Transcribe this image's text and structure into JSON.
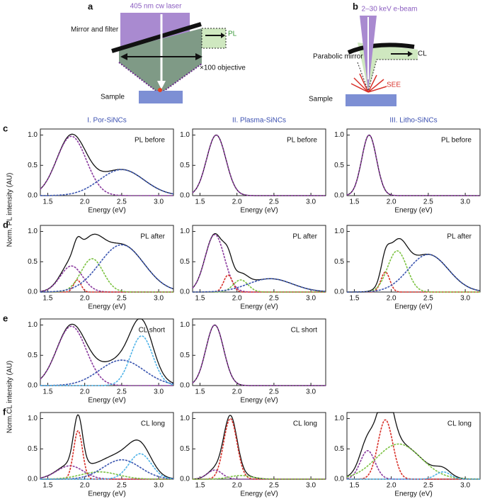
{
  "figure": {
    "panel_a": {
      "letter": "a",
      "laser": "405 nm cw laser",
      "mirror": "Mirror and filter",
      "signal": "PL",
      "objective": "×100 objective",
      "sample": "Sample"
    },
    "panel_b": {
      "letter": "b",
      "beam": "2–30 keV e-beam",
      "mirror": "Parabolic mirror",
      "signal": "CL",
      "electrons": "SEE",
      "sample": "Sample"
    },
    "columns": [
      "I. Por-SiNCs",
      "II. Plasma-SiNCs",
      "III. Litho-SiNCs"
    ],
    "rows": [
      "c",
      "d",
      "e",
      "f"
    ],
    "y_labels": [
      "Norm. PL intensity (AU)",
      "Norm.CL intensity (AU)"
    ]
  },
  "chart_data": [
    {
      "type": "line",
      "title": "PL before",
      "xlabel": "Energy (eV)",
      "xlim": [
        1.4,
        3.2
      ],
      "ylim": [
        0,
        1.1
      ],
      "xticks": [
        {
          "value": 1.5,
          "label": "1.5"
        },
        {
          "value": 2,
          "label": "2.0"
        },
        {
          "value": 2.5,
          "label": "2.5"
        },
        {
          "value": 3,
          "label": "3.0"
        }
      ],
      "yticks": [
        {
          "value": 0,
          "label": "0.0"
        },
        0.5,
        {
          "value": 1,
          "label": "1.0"
        }
      ],
      "components": [
        {
          "color": "#8a3a9e",
          "center": 1.82,
          "amplitude": 0.98,
          "width": 0.2
        },
        {
          "color": "#3a55b0",
          "center": 2.5,
          "amplitude": 0.43,
          "width": 0.3
        }
      ]
    },
    {
      "type": "line",
      "title": "PL before",
      "xlabel": "Energy (eV)",
      "xlim": [
        1.4,
        3.2
      ],
      "ylim": [
        0,
        1.1
      ],
      "xticks": [
        {
          "value": 1.5,
          "label": "1.5"
        },
        {
          "value": 2,
          "label": "2.0"
        },
        {
          "value": 2.5,
          "label": "2.5"
        },
        {
          "value": 3,
          "label": "3.0"
        }
      ],
      "yticks": [
        {
          "value": 0,
          "label": "0.0"
        },
        0.5,
        {
          "value": 1,
          "label": "1.0"
        }
      ],
      "components": [
        {
          "color": "#8a3a9e",
          "center": 1.72,
          "amplitude": 1.0,
          "width": 0.13
        }
      ]
    },
    {
      "type": "line",
      "title": "PL before",
      "xlabel": "Energy (eV)",
      "xlim": [
        1.4,
        3.2
      ],
      "ylim": [
        0,
        1.1
      ],
      "xticks": [
        {
          "value": 1.5,
          "label": "1.5"
        },
        {
          "value": 2,
          "label": "2.0"
        },
        {
          "value": 2.5,
          "label": "2.5"
        },
        {
          "value": 3,
          "label": "3.0"
        }
      ],
      "yticks": [
        {
          "value": 0,
          "label": "0.0"
        },
        0.5,
        {
          "value": 1,
          "label": "1.0"
        }
      ],
      "components": [
        {
          "color": "#8a3a9e",
          "center": 1.7,
          "amplitude": 1.0,
          "width": 0.1
        }
      ]
    },
    {
      "type": "line",
      "title": "PL after",
      "xlabel": "Energy (eV)",
      "xlim": [
        1.4,
        3.2
      ],
      "ylim": [
        0,
        1.1
      ],
      "xticks": [
        {
          "value": 1.5,
          "label": "1.5"
        },
        {
          "value": 2,
          "label": "2.0"
        },
        {
          "value": 2.5,
          "label": "2.5"
        },
        {
          "value": 3,
          "label": "3.0"
        }
      ],
      "yticks": [
        {
          "value": 0,
          "label": "0.0"
        },
        0.5,
        {
          "value": 1,
          "label": "1.0"
        }
      ],
      "components": [
        {
          "color": "#8a3a9e",
          "center": 1.82,
          "amplitude": 0.43,
          "width": 0.15
        },
        {
          "color": "#d8312a",
          "center": 1.9,
          "amplitude": 0.2,
          "width": 0.05
        },
        {
          "color": "#7cc242",
          "center": 2.1,
          "amplitude": 0.55,
          "width": 0.15
        },
        {
          "color": "#3a55b0",
          "center": 2.5,
          "amplitude": 0.78,
          "width": 0.3
        }
      ]
    },
    {
      "type": "line",
      "title": "PL after",
      "xlabel": "Energy (eV)",
      "xlim": [
        1.4,
        3.2
      ],
      "ylim": [
        0,
        1.1
      ],
      "xticks": [
        {
          "value": 1.5,
          "label": "1.5"
        },
        {
          "value": 2,
          "label": "2.0"
        },
        {
          "value": 2.5,
          "label": "2.5"
        },
        {
          "value": 3,
          "label": "3.0"
        }
      ],
      "yticks": [
        {
          "value": 0,
          "label": "0.0"
        },
        0.5,
        {
          "value": 1,
          "label": "1.0"
        }
      ],
      "components": [
        {
          "color": "#8a3a9e",
          "center": 1.7,
          "amplitude": 0.95,
          "width": 0.13
        },
        {
          "color": "#d8312a",
          "center": 1.88,
          "amplitude": 0.28,
          "width": 0.06
        },
        {
          "color": "#7cc242",
          "center": 2.05,
          "amplitude": 0.2,
          "width": 0.1
        },
        {
          "color": "#3a55b0",
          "center": 2.45,
          "amplitude": 0.22,
          "width": 0.3
        }
      ]
    },
    {
      "type": "line",
      "title": "PL after",
      "xlabel": "Energy (eV)",
      "xlim": [
        1.4,
        3.2
      ],
      "ylim": [
        0,
        1.1
      ],
      "xticks": [
        {
          "value": 1.5,
          "label": "1.5"
        },
        {
          "value": 2,
          "label": "2.0"
        },
        {
          "value": 2.5,
          "label": "2.5"
        },
        {
          "value": 3,
          "label": "3.0"
        }
      ],
      "yticks": [
        {
          "value": 0,
          "label": "0.0"
        },
        0.5,
        {
          "value": 1,
          "label": "1.0"
        }
      ],
      "components": [
        {
          "color": "#d8312a",
          "center": 1.92,
          "amplitude": 0.33,
          "width": 0.06
        },
        {
          "color": "#7cc242",
          "center": 2.08,
          "amplitude": 0.68,
          "width": 0.13
        },
        {
          "color": "#3a55b0",
          "center": 2.5,
          "amplitude": 0.62,
          "width": 0.27
        }
      ]
    },
    {
      "type": "line",
      "title": "CL short",
      "xlabel": "Energy (eV)",
      "xlim": [
        1.4,
        3.2
      ],
      "ylim": [
        0,
        1.1
      ],
      "xticks": [
        {
          "value": 1.5,
          "label": "1.5"
        },
        {
          "value": 2,
          "label": "2.0"
        },
        {
          "value": 2.5,
          "label": "2.5"
        },
        {
          "value": 3,
          "label": "3.0"
        }
      ],
      "yticks": [
        {
          "value": 0,
          "label": "0.0"
        },
        0.5,
        {
          "value": 1,
          "label": "1.0"
        }
      ],
      "components": [
        {
          "color": "#8a3a9e",
          "center": 1.82,
          "amplitude": 0.98,
          "width": 0.2
        },
        {
          "color": "#3a55b0",
          "center": 2.5,
          "amplitude": 0.42,
          "width": 0.3
        },
        {
          "color": "#4fb3e8",
          "center": 2.77,
          "amplitude": 0.82,
          "width": 0.15
        }
      ]
    },
    {
      "type": "line",
      "title": "CL short",
      "xlabel": "Energy (eV)",
      "xlim": [
        1.4,
        3.2
      ],
      "ylim": [
        0,
        1.1
      ],
      "xticks": [
        {
          "value": 1.5,
          "label": "1.5"
        },
        {
          "value": 2,
          "label": "2.0"
        },
        {
          "value": 2.5,
          "label": "2.5"
        },
        {
          "value": 3,
          "label": "3.0"
        }
      ],
      "yticks": [
        {
          "value": 0,
          "label": "0.0"
        },
        0.5,
        {
          "value": 1,
          "label": "1.0"
        }
      ],
      "components": [
        {
          "color": "#8a3a9e",
          "center": 1.7,
          "amplitude": 1.0,
          "width": 0.12
        }
      ]
    },
    {
      "type": "line",
      "title": "CL long",
      "xlabel": "Energy (eV)",
      "xlim": [
        1.4,
        3.2
      ],
      "ylim": [
        0,
        1.1
      ],
      "xticks": [
        {
          "value": 1.5,
          "label": "1.5"
        },
        {
          "value": 2,
          "label": "2.0"
        },
        {
          "value": 2.5,
          "label": "2.5"
        },
        {
          "value": 3,
          "label": "3.0"
        }
      ],
      "yticks": [
        {
          "value": 0,
          "label": "0.0"
        },
        0.5,
        {
          "value": 1,
          "label": "1.0"
        }
      ],
      "components": [
        {
          "color": "#8a3a9e",
          "center": 1.8,
          "amplitude": 0.22,
          "width": 0.18
        },
        {
          "color": "#d8312a",
          "center": 1.91,
          "amplitude": 0.8,
          "width": 0.06
        },
        {
          "color": "#7cc242",
          "center": 2.2,
          "amplitude": 0.12,
          "width": 0.25
        },
        {
          "color": "#3a55b0",
          "center": 2.5,
          "amplitude": 0.32,
          "width": 0.25
        },
        {
          "color": "#4fb3e8",
          "center": 2.75,
          "amplitude": 0.42,
          "width": 0.15
        }
      ]
    },
    {
      "type": "line",
      "title": "CL long",
      "xlabel": "Energy (eV)",
      "xlim": [
        1.4,
        3.2
      ],
      "ylim": [
        0,
        1.1
      ],
      "xticks": [
        {
          "value": 1.5,
          "label": "1.5"
        },
        {
          "value": 2,
          "label": "2.0"
        },
        {
          "value": 2.5,
          "label": "2.5"
        },
        {
          "value": 3,
          "label": "3.0"
        }
      ],
      "yticks": [
        {
          "value": 0,
          "label": "0.0"
        },
        0.5,
        {
          "value": 1,
          "label": "1.0"
        }
      ],
      "components": [
        {
          "color": "#8a3a9e",
          "center": 1.7,
          "amplitude": 0.15,
          "width": 0.1
        },
        {
          "color": "#d8312a",
          "center": 1.91,
          "amplitude": 1.0,
          "width": 0.09
        },
        {
          "color": "#7cc242",
          "center": 2.05,
          "amplitude": 0.06,
          "width": 0.15
        }
      ]
    },
    {
      "type": "line",
      "title": "CL long",
      "xlabel": "Energy (eV)",
      "xlim": [
        1.4,
        3.2
      ],
      "ylim": [
        0,
        1.1
      ],
      "xticks": [
        {
          "value": 1.5,
          "label": "1.5"
        },
        {
          "value": 2,
          "label": "2.0"
        },
        {
          "value": 2.5,
          "label": "2.5"
        },
        {
          "value": 3,
          "label": "3.0"
        }
      ],
      "yticks": [
        {
          "value": 0,
          "label": "0.0"
        },
        0.5,
        {
          "value": 1,
          "label": "1.0"
        }
      ],
      "components": [
        {
          "color": "#8a3a9e",
          "center": 1.68,
          "amplitude": 0.47,
          "width": 0.1
        },
        {
          "color": "#d8312a",
          "center": 1.92,
          "amplitude": 0.98,
          "width": 0.1
        },
        {
          "color": "#7cc242",
          "center": 2.1,
          "amplitude": 0.58,
          "width": 0.3
        },
        {
          "color": "#4fb3e8",
          "center": 2.7,
          "amplitude": 0.12,
          "width": 0.1
        }
      ]
    }
  ]
}
